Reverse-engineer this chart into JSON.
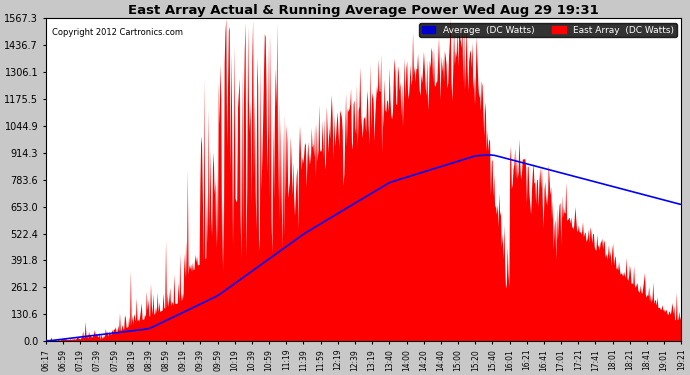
{
  "title": "East Array Actual & Running Average Power Wed Aug 29 19:31",
  "copyright": "Copyright 2012 Cartronics.com",
  "legend_avg": "Average  (DC Watts)",
  "legend_east": "East Array  (DC Watts)",
  "ymin": 0.0,
  "ymax": 1567.3,
  "yticks": [
    0.0,
    130.6,
    261.2,
    391.8,
    522.4,
    653.0,
    783.6,
    914.3,
    1044.9,
    1175.5,
    1306.1,
    1436.7,
    1567.3
  ],
  "background_color": "#c8c8c8",
  "plot_bg_color": "#ffffff",
  "fill_color": "#ff0000",
  "avg_line_color": "#0000ff",
  "title_color": "#000000",
  "grid_color": "#aaaaaa",
  "xtick_labels": [
    "06:17",
    "06:59",
    "07:19",
    "07:39",
    "07:59",
    "08:19",
    "08:39",
    "08:59",
    "09:19",
    "09:39",
    "09:59",
    "10:19",
    "10:39",
    "10:59",
    "11:19",
    "11:39",
    "11:59",
    "12:19",
    "12:39",
    "13:19",
    "13:40",
    "14:00",
    "14:20",
    "14:40",
    "15:00",
    "15:20",
    "15:40",
    "16:01",
    "16:21",
    "16:41",
    "17:01",
    "17:21",
    "17:41",
    "18:01",
    "18:21",
    "18:41",
    "19:01",
    "19:21"
  ],
  "n_labels": 38,
  "n_dense": 760
}
